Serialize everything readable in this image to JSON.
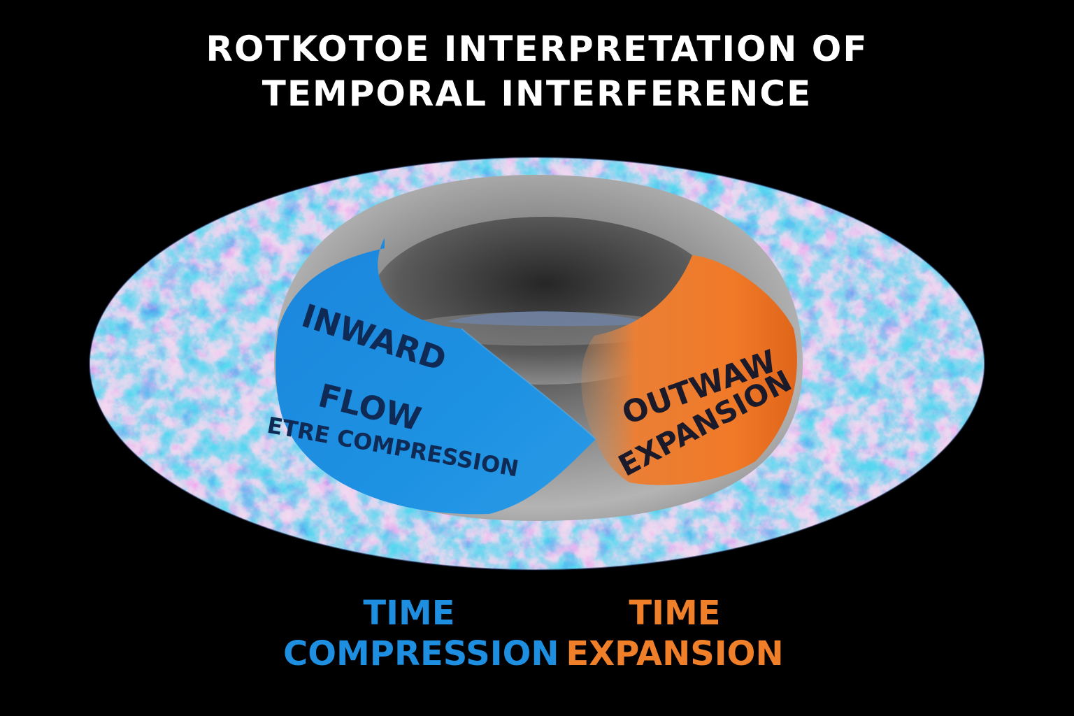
{
  "title": {
    "line1": "ROTKOTOE INTERPRETATION OF",
    "line2": "TEMPORAL INTERFERENCE"
  },
  "torus": {
    "blue_label": {
      "line1": "INWARD",
      "line2": "FLOW",
      "line3": "ETRE COMPRESSION"
    },
    "orange_label": {
      "line1": "OUTWAW",
      "line2": "EXPANSION"
    }
  },
  "captions": {
    "left": {
      "line1": "TIME",
      "line2": "COMPRESSION"
    },
    "right": {
      "line1": "TIME",
      "line2": "EXPANSION"
    }
  },
  "colors": {
    "background": "#000000",
    "blue": "#1e8fe0",
    "orange": "#f07f2a",
    "torus_gray": "#9a9a9a",
    "cmb_blue": "#3a6fd0",
    "cmb_orange": "#d9923a",
    "label_dark": "#0f2a55"
  }
}
